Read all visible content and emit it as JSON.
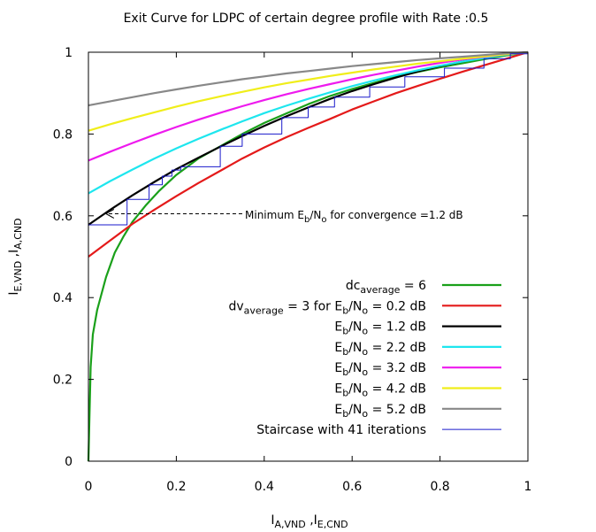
{
  "chart_data": {
    "type": "line",
    "title": "Exit Curve for LDPC of certain degree profile with Rate :0.5",
    "xlabel": {
      "main": "I",
      "sub1": "A,VND",
      "sep": " ,I",
      "sub2": "E,CND"
    },
    "ylabel": {
      "main": "I",
      "sub1": "E,VND",
      "sep": " ,I",
      "sub2": "A,CND"
    },
    "xlim": [
      0,
      1
    ],
    "ylim": [
      0,
      1
    ],
    "xticks": [
      0,
      0.2,
      0.4,
      0.6,
      0.8,
      1
    ],
    "yticks": [
      0,
      0.2,
      0.4,
      0.6,
      0.8,
      1
    ],
    "xtick_labels": [
      "0",
      "0.2",
      "0.4",
      "0.6",
      "0.8",
      "1"
    ],
    "ytick_labels": [
      "0",
      "0.2",
      "0.4",
      "0.6",
      "0.8",
      "1"
    ],
    "grid": false,
    "legend_position": "bottom-right",
    "annotation": {
      "text_a": "Minimum E",
      "sub_a": "b",
      "text_b": "/N",
      "sub_b": "o",
      "text_c": " for convergence =1.2 dB",
      "arrow_from": [
        0.35,
        0.605
      ],
      "arrow_to": [
        0.04,
        0.605
      ]
    },
    "series": [
      {
        "legend": {
          "a": "dc",
          "sa": "average",
          "b": " = 6"
        },
        "color": "#1aa01a",
        "kind": "cnd",
        "points": [
          [
            0.0,
            0.0
          ],
          [
            0.005,
            0.23
          ],
          [
            0.01,
            0.31
          ],
          [
            0.02,
            0.37
          ],
          [
            0.04,
            0.45
          ],
          [
            0.06,
            0.51
          ],
          [
            0.08,
            0.55
          ],
          [
            0.1,
            0.585
          ],
          [
            0.13,
            0.625
          ],
          [
            0.16,
            0.66
          ],
          [
            0.2,
            0.7
          ],
          [
            0.25,
            0.74
          ],
          [
            0.3,
            0.77
          ],
          [
            0.35,
            0.8
          ],
          [
            0.4,
            0.827
          ],
          [
            0.45,
            0.85
          ],
          [
            0.5,
            0.873
          ],
          [
            0.55,
            0.893
          ],
          [
            0.6,
            0.91
          ],
          [
            0.65,
            0.925
          ],
          [
            0.7,
            0.94
          ],
          [
            0.75,
            0.952
          ],
          [
            0.8,
            0.963
          ],
          [
            0.85,
            0.973
          ],
          [
            0.9,
            0.983
          ],
          [
            0.95,
            0.992
          ],
          [
            1.0,
            1.0
          ]
        ]
      },
      {
        "legend": {
          "a": "dv",
          "sa": "average",
          "b": " = 3 for E",
          "sb": "b",
          "c": "/N",
          "sc": "o",
          "d": " = 0.2 dB"
        },
        "color": "#e41a1a",
        "kind": "vnd",
        "points": [
          [
            0.0,
            0.5
          ],
          [
            0.05,
            0.54
          ],
          [
            0.1,
            0.58
          ],
          [
            0.15,
            0.615
          ],
          [
            0.2,
            0.648
          ],
          [
            0.25,
            0.68
          ],
          [
            0.3,
            0.71
          ],
          [
            0.35,
            0.74
          ],
          [
            0.4,
            0.767
          ],
          [
            0.45,
            0.792
          ],
          [
            0.5,
            0.815
          ],
          [
            0.55,
            0.837
          ],
          [
            0.6,
            0.86
          ],
          [
            0.65,
            0.88
          ],
          [
            0.7,
            0.9
          ],
          [
            0.75,
            0.918
          ],
          [
            0.8,
            0.935
          ],
          [
            0.85,
            0.952
          ],
          [
            0.9,
            0.968
          ],
          [
            0.95,
            0.984
          ],
          [
            1.0,
            1.0
          ]
        ]
      },
      {
        "legend": {
          "a": "E",
          "sa": "b",
          "b": "/N",
          "sb": "o",
          "c": " = 1.2 dB"
        },
        "color": "#000000",
        "kind": "vnd",
        "points": [
          [
            0.0,
            0.578
          ],
          [
            0.05,
            0.615
          ],
          [
            0.1,
            0.65
          ],
          [
            0.15,
            0.683
          ],
          [
            0.2,
            0.714
          ],
          [
            0.25,
            0.742
          ],
          [
            0.3,
            0.769
          ],
          [
            0.35,
            0.795
          ],
          [
            0.4,
            0.82
          ],
          [
            0.45,
            0.843
          ],
          [
            0.5,
            0.865
          ],
          [
            0.55,
            0.886
          ],
          [
            0.6,
            0.905
          ],
          [
            0.65,
            0.922
          ],
          [
            0.7,
            0.938
          ],
          [
            0.75,
            0.953
          ],
          [
            0.8,
            0.966
          ],
          [
            0.85,
            0.977
          ],
          [
            0.9,
            0.987
          ],
          [
            0.95,
            0.995
          ],
          [
            1.0,
            1.0
          ]
        ]
      },
      {
        "legend": {
          "a": "E",
          "sa": "b",
          "b": "/N",
          "sb": "o",
          "c": " = 2.2 dB"
        },
        "color": "#1ee6ee",
        "kind": "vnd",
        "points": [
          [
            0.0,
            0.655
          ],
          [
            0.05,
            0.685
          ],
          [
            0.1,
            0.713
          ],
          [
            0.15,
            0.74
          ],
          [
            0.2,
            0.765
          ],
          [
            0.25,
            0.788
          ],
          [
            0.3,
            0.81
          ],
          [
            0.35,
            0.831
          ],
          [
            0.4,
            0.851
          ],
          [
            0.45,
            0.869
          ],
          [
            0.5,
            0.886
          ],
          [
            0.55,
            0.902
          ],
          [
            0.6,
            0.917
          ],
          [
            0.65,
            0.931
          ],
          [
            0.7,
            0.944
          ],
          [
            0.75,
            0.956
          ],
          [
            0.8,
            0.967
          ],
          [
            0.85,
            0.977
          ],
          [
            0.9,
            0.986
          ],
          [
            0.95,
            0.994
          ],
          [
            1.0,
            1.0
          ]
        ]
      },
      {
        "legend": {
          "a": "E",
          "sa": "b",
          "b": "/N",
          "sb": "o",
          "c": " = 3.2 dB"
        },
        "color": "#ee1aee",
        "kind": "vnd",
        "points": [
          [
            0.0,
            0.735
          ],
          [
            0.05,
            0.757
          ],
          [
            0.1,
            0.778
          ],
          [
            0.15,
            0.798
          ],
          [
            0.2,
            0.817
          ],
          [
            0.25,
            0.835
          ],
          [
            0.3,
            0.852
          ],
          [
            0.35,
            0.868
          ],
          [
            0.4,
            0.883
          ],
          [
            0.45,
            0.897
          ],
          [
            0.5,
            0.91
          ],
          [
            0.55,
            0.922
          ],
          [
            0.6,
            0.934
          ],
          [
            0.65,
            0.945
          ],
          [
            0.7,
            0.955
          ],
          [
            0.75,
            0.965
          ],
          [
            0.8,
            0.974
          ],
          [
            0.85,
            0.982
          ],
          [
            0.9,
            0.989
          ],
          [
            0.95,
            0.995
          ],
          [
            1.0,
            1.0
          ]
        ]
      },
      {
        "legend": {
          "a": "E",
          "sa": "b",
          "b": "/N",
          "sb": "o",
          "c": " = 4.2 dB"
        },
        "color": "#f0ee1a",
        "kind": "vnd",
        "points": [
          [
            0.0,
            0.808
          ],
          [
            0.05,
            0.824
          ],
          [
            0.1,
            0.839
          ],
          [
            0.15,
            0.853
          ],
          [
            0.2,
            0.867
          ],
          [
            0.25,
            0.88
          ],
          [
            0.3,
            0.892
          ],
          [
            0.35,
            0.903
          ],
          [
            0.4,
            0.914
          ],
          [
            0.45,
            0.924
          ],
          [
            0.5,
            0.933
          ],
          [
            0.55,
            0.942
          ],
          [
            0.6,
            0.95
          ],
          [
            0.65,
            0.958
          ],
          [
            0.7,
            0.965
          ],
          [
            0.75,
            0.972
          ],
          [
            0.8,
            0.978
          ],
          [
            0.85,
            0.984
          ],
          [
            0.9,
            0.99
          ],
          [
            0.95,
            0.995
          ],
          [
            1.0,
            1.0
          ]
        ]
      },
      {
        "legend": {
          "a": "E",
          "sa": "b",
          "b": "/N",
          "sb": "o",
          "c": " = 5.2 dB"
        },
        "color": "#888888",
        "kind": "vnd",
        "points": [
          [
            0.0,
            0.87
          ],
          [
            0.05,
            0.88
          ],
          [
            0.1,
            0.89
          ],
          [
            0.15,
            0.9
          ],
          [
            0.2,
            0.909
          ],
          [
            0.25,
            0.918
          ],
          [
            0.3,
            0.926
          ],
          [
            0.35,
            0.934
          ],
          [
            0.4,
            0.941
          ],
          [
            0.45,
            0.948
          ],
          [
            0.5,
            0.954
          ],
          [
            0.55,
            0.96
          ],
          [
            0.6,
            0.966
          ],
          [
            0.65,
            0.971
          ],
          [
            0.7,
            0.976
          ],
          [
            0.75,
            0.981
          ],
          [
            0.8,
            0.985
          ],
          [
            0.85,
            0.989
          ],
          [
            0.9,
            0.993
          ],
          [
            0.95,
            0.997
          ],
          [
            1.0,
            1.0
          ]
        ]
      },
      {
        "legend": {
          "a": "Staircase with 41 iterations"
        },
        "color": "#1a1acc",
        "kind": "staircase",
        "points": [
          [
            0.0,
            0.0
          ],
          [
            0.0,
            0.578
          ],
          [
            0.088,
            0.578
          ],
          [
            0.088,
            0.64
          ],
          [
            0.138,
            0.64
          ],
          [
            0.138,
            0.676
          ],
          [
            0.168,
            0.676
          ],
          [
            0.168,
            0.697
          ],
          [
            0.19,
            0.697
          ],
          [
            0.19,
            0.712
          ],
          [
            0.21,
            0.712
          ],
          [
            0.21,
            0.72
          ],
          [
            0.3,
            0.72
          ],
          [
            0.3,
            0.77
          ],
          [
            0.35,
            0.77
          ],
          [
            0.35,
            0.8
          ],
          [
            0.44,
            0.8
          ],
          [
            0.44,
            0.84
          ],
          [
            0.5,
            0.84
          ],
          [
            0.5,
            0.866
          ],
          [
            0.56,
            0.866
          ],
          [
            0.56,
            0.89
          ],
          [
            0.64,
            0.89
          ],
          [
            0.64,
            0.915
          ],
          [
            0.72,
            0.915
          ],
          [
            0.72,
            0.94
          ],
          [
            0.81,
            0.94
          ],
          [
            0.81,
            0.961
          ],
          [
            0.9,
            0.961
          ],
          [
            0.9,
            0.984
          ],
          [
            0.96,
            0.984
          ],
          [
            0.96,
            0.996
          ],
          [
            1.0,
            0.996
          ],
          [
            1.0,
            1.0
          ]
        ]
      }
    ]
  }
}
